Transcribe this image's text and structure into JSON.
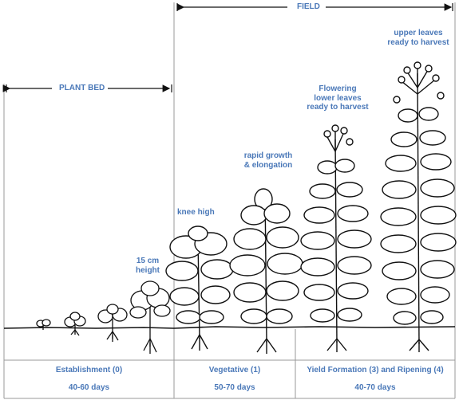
{
  "colors": {
    "accent": "#4a78b8",
    "ink": "#111111",
    "frame": "#9a9a9a"
  },
  "headers": {
    "field": "FIELD",
    "plant_bed": "PLANT BED"
  },
  "stage_labels": {
    "cm15": "15 cm\nheight",
    "knee": "knee high",
    "rapid": "rapid growth\n& elongation",
    "flowering": "Flowering\nlower leaves\nready to harvest",
    "upper": "upper leaves\nready to harvest"
  },
  "phases": [
    {
      "name": "Establishment (0)",
      "days": "40-60 days"
    },
    {
      "name": "Vegetative (1)",
      "days": "50-70 days"
    },
    {
      "name": "Yield Formation (3) and Ripening (4)",
      "days": "40-70 days"
    }
  ],
  "icons": [
    "tobacco-seedling-icon",
    "tobacco-plant-icon",
    "flowering-plant-icon"
  ]
}
